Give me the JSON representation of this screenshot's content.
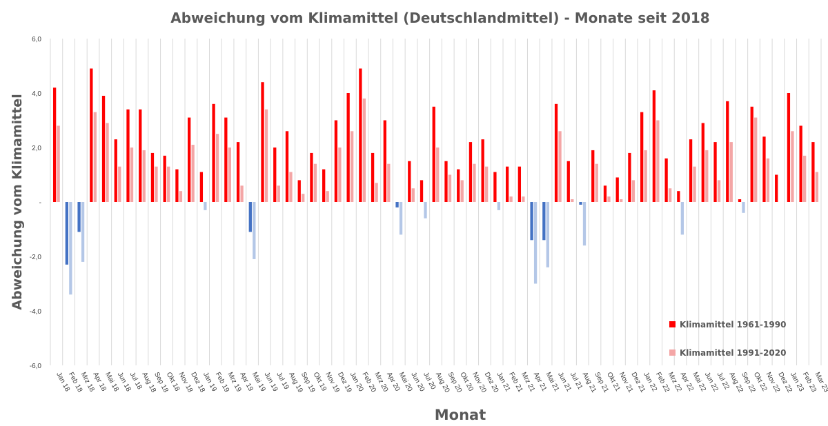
{
  "chart_data": {
    "type": "bar",
    "title": "Abweichung vom Klimamittel (Deutschlandmittel) - Monate seit 2018",
    "xlabel": "Monat",
    "ylabel": "Abweichung vom Klimamittel",
    "ylim": [
      -6,
      6
    ],
    "yticks": [
      6,
      4,
      2,
      0,
      -2,
      -4,
      -6
    ],
    "ytick_labels": [
      "6,0",
      "4,0",
      "2,0",
      "-",
      "-2,0",
      "-4,0",
      "-6,0"
    ],
    "grid": "vertical",
    "legend_position": "bottom-right",
    "categories": [
      "Jan 18",
      "Feb 18",
      "Mrz 18",
      "Apr 18",
      "Mai 18",
      "Jun 18",
      "Jul 18",
      "Aug 18",
      "Sep 18",
      "Okt 18",
      "Nov 18",
      "Dez 18",
      "Jan 19",
      "Feb 19",
      "Mrz 19",
      "Apr 19",
      "Mai 19",
      "Jun 19",
      "Jul 19",
      "Aug 19",
      "Sep 19",
      "Okt 19",
      "Nov 19",
      "Dez 19",
      "Jan 20",
      "Feb 20",
      "Mrz 20",
      "Apr 20",
      "Mai 20",
      "Jun 20",
      "Jul 20",
      "Aug 20",
      "Sep 20",
      "Okt 20",
      "Nov 20",
      "Dez 20",
      "Jan 21",
      "Feb 21",
      "Mrz 21",
      "Apr 21",
      "Mai 21",
      "Jun 21",
      "Jul 21",
      "Aug 21",
      "Sep 21",
      "Okt 21",
      "Nov 21",
      "Dez 21",
      "Jan 22",
      "Feb 22",
      "Mrz 22",
      "Apr 22",
      "Mai 22",
      "Jun 22",
      "Jul 22",
      "Aug 22",
      "Sep 22",
      "Okt 22",
      "Nov 22",
      "Dez 22",
      "Jan 23",
      "Feb 23",
      "Mar 23"
    ],
    "series": [
      {
        "name": "Klimamittel 1961-1990",
        "color_positive": "#ff0000",
        "color_negative": "#4472c4",
        "values": [
          4.2,
          -2.3,
          -1.1,
          4.9,
          3.9,
          2.3,
          3.4,
          3.4,
          1.8,
          1.7,
          1.2,
          3.1,
          1.1,
          3.6,
          3.1,
          2.2,
          -1.1,
          4.4,
          2.0,
          2.6,
          0.8,
          1.8,
          1.2,
          3.0,
          4.0,
          4.9,
          1.8,
          3.0,
          -0.2,
          1.5,
          0.8,
          3.5,
          1.5,
          1.2,
          2.2,
          2.3,
          1.1,
          1.3,
          1.3,
          -1.4,
          -1.4,
          3.6,
          1.5,
          -0.1,
          1.9,
          0.6,
          0.9,
          1.8,
          3.3,
          4.1,
          1.6,
          0.4,
          2.3,
          2.9,
          2.2,
          3.7,
          0.1,
          3.5,
          2.4,
          1.0,
          4.0,
          2.8,
          2.2
        ]
      },
      {
        "name": "Klimamittel 1991-2020",
        "color_positive": "#f4a6a6",
        "color_negative": "#b4c7e7",
        "values": [
          2.8,
          -3.4,
          -2.2,
          3.3,
          2.9,
          1.3,
          2.0,
          1.9,
          1.3,
          1.3,
          0.4,
          2.1,
          -0.3,
          2.5,
          2.0,
          0.6,
          -2.1,
          3.4,
          0.6,
          1.1,
          0.3,
          1.4,
          0.4,
          2.0,
          2.6,
          3.8,
          0.7,
          1.4,
          -1.2,
          0.5,
          -0.6,
          2.0,
          1.0,
          0.8,
          1.4,
          1.3,
          -0.3,
          0.2,
          0.2,
          -3.0,
          -2.4,
          2.6,
          0.1,
          -1.6,
          1.4,
          0.2,
          0.1,
          0.8,
          1.9,
          3.0,
          0.5,
          -1.2,
          1.3,
          1.9,
          0.8,
          2.2,
          -0.4,
          3.1,
          1.6,
          0.0,
          2.6,
          1.7,
          1.1
        ]
      }
    ]
  }
}
